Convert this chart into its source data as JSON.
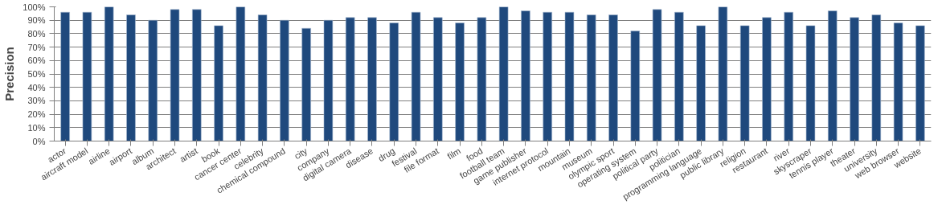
{
  "chart_data": {
    "type": "bar",
    "ylabel": "Precision",
    "categories": [
      "actor",
      "aircraft model",
      "airline",
      "airport",
      "album",
      "architect",
      "artist",
      "book",
      "cancer center",
      "celebrity",
      "chemical compound",
      "city",
      "company",
      "digital camera",
      "disease",
      "drug",
      "festival",
      "file format",
      "film",
      "food",
      "football team",
      "game publisher",
      "internet protocol",
      "mountain",
      "museum",
      "olympic sport",
      "operating system",
      "political party",
      "politician",
      "programming language",
      "public library",
      "religion",
      "restaurant",
      "river",
      "skyscraper",
      "tennis player",
      "theater",
      "university",
      "web browser",
      "website"
    ],
    "values": [
      96,
      96,
      100,
      94,
      90,
      98,
      98,
      86,
      100,
      94,
      90,
      84,
      90,
      92,
      92,
      88,
      96,
      92,
      88,
      92,
      100,
      97,
      96,
      96,
      94,
      94,
      82,
      98,
      96,
      86,
      100,
      86,
      92,
      96,
      86,
      97,
      92,
      94,
      88,
      86
    ],
    "color": "#1f497d",
    "ylim": [
      0,
      100
    ],
    "yticks": [
      {
        "value": 0,
        "label": "0%"
      },
      {
        "value": 10,
        "label": "10%"
      },
      {
        "value": 20,
        "label": "20%"
      },
      {
        "value": 30,
        "label": "30%"
      },
      {
        "value": 40,
        "label": "40%"
      },
      {
        "value": 50,
        "label": "50%"
      },
      {
        "value": 60,
        "label": "60%"
      },
      {
        "value": 70,
        "label": "70%"
      },
      {
        "value": 80,
        "label": "80%"
      },
      {
        "value": 90,
        "label": "90%"
      },
      {
        "value": 100,
        "label": "100%"
      }
    ],
    "grid": "y"
  }
}
